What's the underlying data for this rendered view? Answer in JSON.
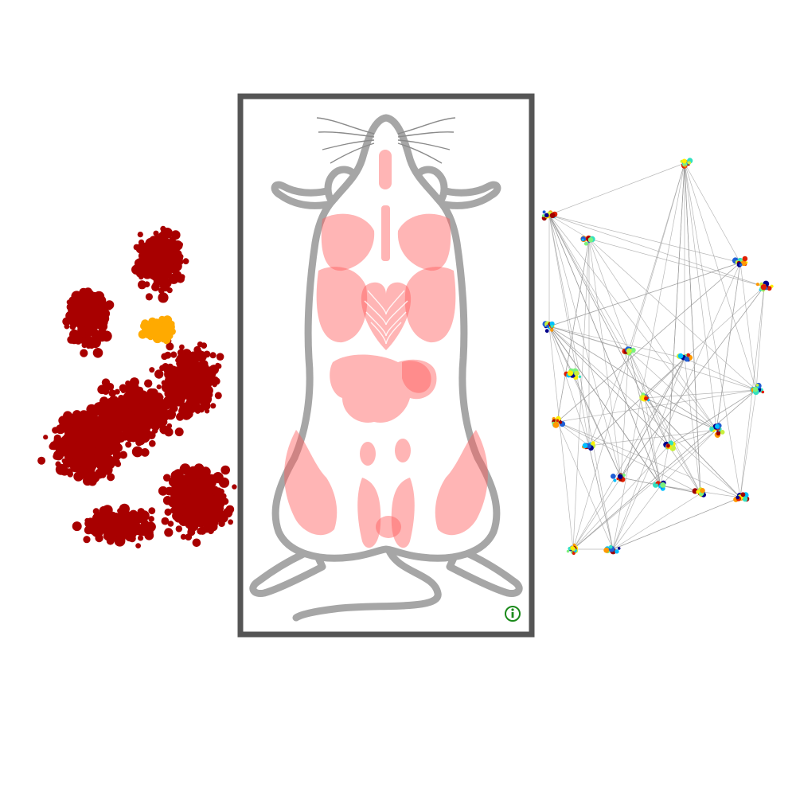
{
  "colors": {
    "background": "#ffffff",
    "frame": "#555555",
    "mouse_outline": "#a6a6a6",
    "organ_fill": "#ff6b6b",
    "left_cluster_main": "#a80000",
    "left_cluster_accent": "#ffaa00",
    "network_edge": "#9a9a9a",
    "info_icon": "#1a8a1a"
  },
  "icons": {
    "info": "info-icon"
  },
  "network_palette": [
    "#00008b",
    "#1f5fd6",
    "#00bfff",
    "#33e0c0",
    "#7cf27c",
    "#c8f03c",
    "#ffee00",
    "#ff9900",
    "#e02000",
    "#a00000"
  ]
}
